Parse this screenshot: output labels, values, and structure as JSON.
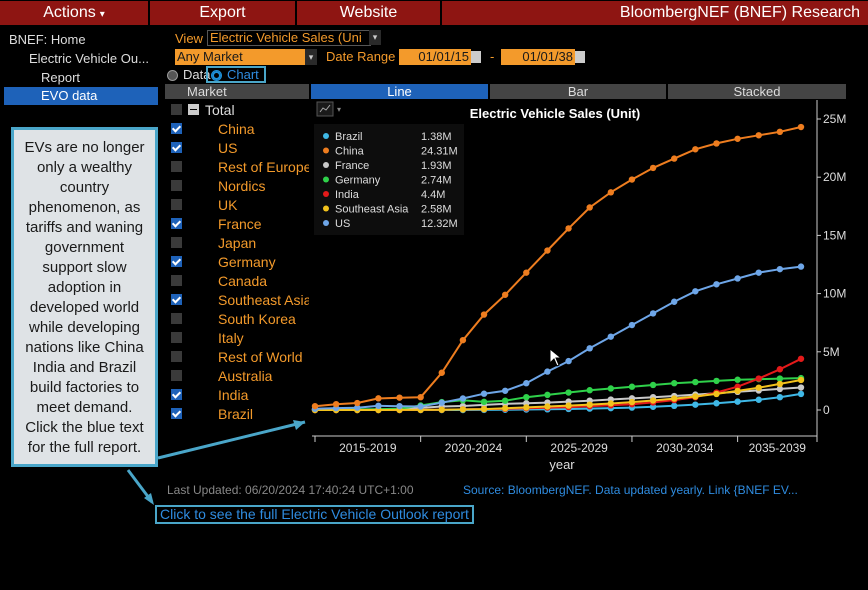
{
  "menu": {
    "actions": "Actions",
    "actions_caret": "▾",
    "export": "Export",
    "website": "Website",
    "title": "BloombergNEF (BNEF) Research"
  },
  "sidebar": {
    "home": "BNEF: Home",
    "parent": "Electric Vehicle Ou...",
    "report": "Report",
    "evo_data": "EVO data"
  },
  "controls": {
    "view_label": "View",
    "view_value": "Electric Vehicle Sales (Uni",
    "market_value": "Any Market",
    "date_range_label": "Date Range",
    "date_from": "01/01/15",
    "date_sep": "-",
    "date_to": "01/01/38",
    "radio_data": "Data",
    "radio_chart": "Chart",
    "selected_mode": "Chart"
  },
  "tabs": {
    "header_market": "Market",
    "line": "Line",
    "bar": "Bar",
    "stacked": "Stacked",
    "active": "Line"
  },
  "markets": [
    {
      "label": "Total",
      "checked": false,
      "total": true
    },
    {
      "label": "China",
      "checked": true
    },
    {
      "label": "US",
      "checked": true
    },
    {
      "label": "Rest of Europe",
      "checked": false
    },
    {
      "label": "Nordics",
      "checked": false
    },
    {
      "label": "UK",
      "checked": false
    },
    {
      "label": "France",
      "checked": true
    },
    {
      "label": "Japan",
      "checked": false
    },
    {
      "label": "Germany",
      "checked": true
    },
    {
      "label": "Canada",
      "checked": false
    },
    {
      "label": "Southeast Asia",
      "checked": true
    },
    {
      "label": "South Korea",
      "checked": false
    },
    {
      "label": "Italy",
      "checked": false
    },
    {
      "label": "Rest of World",
      "checked": false
    },
    {
      "label": "Australia",
      "checked": false
    },
    {
      "label": "India",
      "checked": true
    },
    {
      "label": "Brazil",
      "checked": true
    }
  ],
  "callout": {
    "text": "EVs are no longer only a wealthy country phenomenon, as tariffs and waning government support slow adoption in developed world while developing nations like China India and Brazil build factories to meet demand. Click the blue text for the full report."
  },
  "footer": {
    "last_updated": "Last Updated: 06/20/2024 17:40:24 UTC+1:00",
    "source": "Source: BloombergNEF. Data updated yearly. Link {BNEF EV...",
    "report_link": "Click to see the full Electric Vehicle Outlook report"
  },
  "colors": {
    "menu_bg": "#8e1512",
    "accent_orange": "#f39a2b",
    "accent_blue": "#1e62b9",
    "link_blue": "#2f8ce0"
  },
  "chart_data": {
    "type": "line",
    "title": "Electric Vehicle Sales (Unit)",
    "xlabel": "year",
    "ylabel": "",
    "x_tick_labels": [
      "2015-2019",
      "2020-2024",
      "2025-2029",
      "2030-2034",
      "2035-2039"
    ],
    "y_tick_labels": [
      "0",
      "5M",
      "10M",
      "15M",
      "20M",
      "25M"
    ],
    "ylim": [
      0,
      26000000
    ],
    "x": [
      2015,
      2016,
      2017,
      2018,
      2019,
      2020,
      2021,
      2022,
      2023,
      2024,
      2025,
      2026,
      2027,
      2028,
      2029,
      2030,
      2031,
      2032,
      2033,
      2034,
      2035,
      2036,
      2037,
      2038
    ],
    "legend_position": "top-left",
    "grid": false,
    "series": [
      {
        "name": "Brazil",
        "color": "#3fb8e6",
        "last_label": "1.38M",
        "values": [
          0,
          0,
          0,
          0,
          0,
          0,
          0,
          0,
          10000,
          20000,
          40000,
          60000,
          90000,
          120000,
          160000,
          210000,
          280000,
          360000,
          460000,
          580000,
          720000,
          880000,
          1100000,
          1380000
        ]
      },
      {
        "name": "China",
        "color": "#ee7d1f",
        "last_label": "24.31M",
        "values": [
          330000,
          500000,
          600000,
          1000000,
          1060000,
          1100000,
          3200000,
          6000000,
          8200000,
          9900000,
          11800000,
          13700000,
          15600000,
          17400000,
          18700000,
          19800000,
          20800000,
          21600000,
          22400000,
          22900000,
          23300000,
          23600000,
          23900000,
          24310000
        ]
      },
      {
        "name": "France",
        "color": "#c9c9c9",
        "last_label": "1.93M",
        "values": [
          20000,
          30000,
          40000,
          50000,
          70000,
          180000,
          300000,
          340000,
          440000,
          520000,
          580000,
          640000,
          720000,
          800000,
          900000,
          1000000,
          1100000,
          1200000,
          1320000,
          1440000,
          1560000,
          1680000,
          1810000,
          1930000
        ]
      },
      {
        "name": "Germany",
        "color": "#2fd14a",
        "last_label": "2.74M",
        "values": [
          20000,
          30000,
          50000,
          70000,
          110000,
          390000,
          680000,
          830000,
          700000,
          800000,
          1100000,
          1300000,
          1500000,
          1700000,
          1850000,
          2000000,
          2150000,
          2300000,
          2400000,
          2500000,
          2600000,
          2650000,
          2700000,
          2740000
        ]
      },
      {
        "name": "India",
        "color": "#e41a1a",
        "last_label": "4.4M",
        "values": [
          0,
          0,
          0,
          0,
          0,
          10000,
          20000,
          50000,
          80000,
          100000,
          150000,
          200000,
          250000,
          320000,
          400000,
          500000,
          650000,
          850000,
          1100000,
          1500000,
          2000000,
          2700000,
          3500000,
          4400000
        ]
      },
      {
        "name": "Southeast Asia",
        "color": "#f2c21c",
        "last_label": "2.58M",
        "values": [
          0,
          0,
          0,
          0,
          10000,
          10000,
          20000,
          50000,
          80000,
          150000,
          220000,
          300000,
          380000,
          460000,
          560000,
          680000,
          820000,
          980000,
          1160000,
          1380000,
          1640000,
          1920000,
          2240000,
          2580000
        ]
      },
      {
        "name": "US",
        "color": "#6ea6e8",
        "last_label": "12.32M",
        "values": [
          110000,
          160000,
          200000,
          360000,
          330000,
          300000,
          630000,
          990000,
          1400000,
          1650000,
          2300000,
          3300000,
          4200000,
          5300000,
          6300000,
          7300000,
          8300000,
          9300000,
          10200000,
          10800000,
          11300000,
          11800000,
          12100000,
          12320000
        ]
      }
    ]
  }
}
